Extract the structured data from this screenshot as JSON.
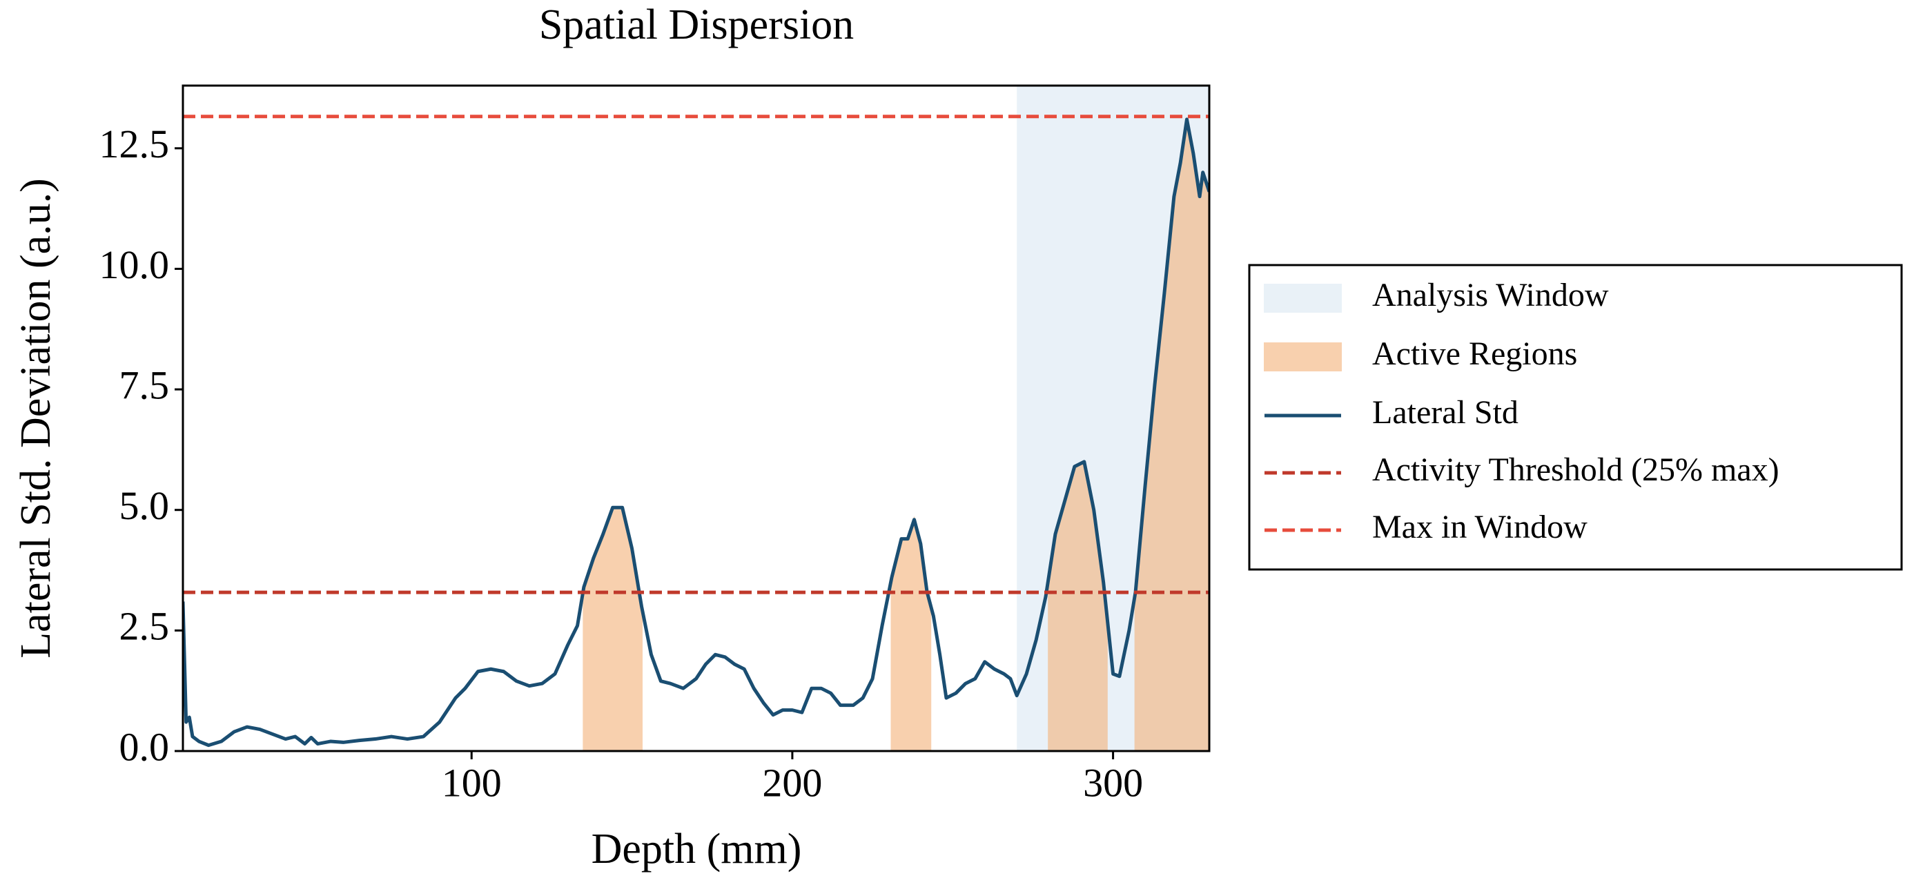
{
  "chart_data": {
    "type": "line",
    "title": "Spatial Dispersion",
    "x_label": "Depth (mm)",
    "y_label": "Lateral Std. Deviation (a.u.)",
    "xlim": [
      10,
      330
    ],
    "ylim": [
      0,
      13.8
    ],
    "xticks": [
      100,
      200,
      300
    ],
    "yticks": [
      {
        "value": 0,
        "label": "0.0"
      },
      2.5,
      {
        "value": 5,
        "label": "5.0"
      },
      7.5,
      {
        "value": 10,
        "label": "10.0"
      },
      12.5
    ],
    "window": {
      "name": "Analysis Window",
      "color": "#dbe8f3",
      "range": [
        270,
        330
      ]
    },
    "regions": {
      "name": "Active Regions",
      "color": "#f4b27a",
      "spans": [
        [
          135,
          153
        ],
        [
          231,
          243
        ],
        [
          280,
          298
        ],
        [
          307,
          330
        ]
      ]
    },
    "threshold": {
      "name": "Activity Threshold (25% max)",
      "color": "#c0392b",
      "value": 3.29
    },
    "max_line": {
      "name": "Max in Window",
      "color": "#e74c3c",
      "value": 13.16
    },
    "x": [
      10,
      11,
      12,
      13,
      15,
      18,
      22,
      26,
      30,
      34,
      38,
      42,
      45,
      48,
      50,
      52,
      56,
      60,
      65,
      70,
      75,
      80,
      85,
      90,
      95,
      98,
      102,
      106,
      110,
      114,
      118,
      122,
      126,
      130,
      133,
      135,
      138,
      141,
      144,
      147,
      150,
      153,
      156,
      159,
      162,
      166,
      170,
      173,
      176,
      179,
      182,
      185,
      188,
      191,
      194,
      197,
      200,
      203,
      206,
      209,
      212,
      215,
      219,
      222,
      225,
      228,
      231,
      234,
      236,
      238,
      240,
      242,
      244,
      246,
      248,
      251,
      254,
      257,
      260,
      263,
      266,
      268,
      270,
      273,
      276,
      279,
      282,
      285,
      288,
      291,
      294,
      297,
      300,
      302,
      305,
      307,
      310,
      313,
      316,
      319,
      321,
      323,
      325,
      327,
      328,
      330
    ],
    "series": [
      {
        "name": "Lateral Std",
        "color": "#1a4e72",
        "values": [
          3.1,
          0.6,
          0.7,
          0.3,
          0.2,
          0.12,
          0.2,
          0.4,
          0.5,
          0.45,
          0.35,
          0.25,
          0.3,
          0.15,
          0.28,
          0.15,
          0.2,
          0.18,
          0.22,
          0.25,
          0.3,
          0.25,
          0.3,
          0.6,
          1.1,
          1.3,
          1.65,
          1.7,
          1.65,
          1.45,
          1.35,
          1.4,
          1.6,
          2.2,
          2.6,
          3.4,
          4.0,
          4.5,
          5.05,
          5.05,
          4.2,
          3.0,
          2.0,
          1.45,
          1.4,
          1.3,
          1.5,
          1.8,
          2.0,
          1.95,
          1.8,
          1.7,
          1.3,
          1.0,
          0.75,
          0.85,
          0.85,
          0.8,
          1.3,
          1.3,
          1.2,
          0.95,
          0.95,
          1.1,
          1.5,
          2.6,
          3.6,
          4.4,
          4.4,
          4.8,
          4.3,
          3.3,
          2.8,
          2.0,
          1.1,
          1.2,
          1.4,
          1.5,
          1.85,
          1.7,
          1.6,
          1.5,
          1.15,
          1.6,
          2.3,
          3.2,
          4.5,
          5.2,
          5.9,
          6.0,
          5.0,
          3.5,
          1.6,
          1.55,
          2.5,
          3.3,
          5.5,
          7.6,
          9.5,
          11.5,
          12.2,
          13.1,
          12.4,
          11.5,
          12.0,
          11.6
        ]
      }
    ]
  }
}
